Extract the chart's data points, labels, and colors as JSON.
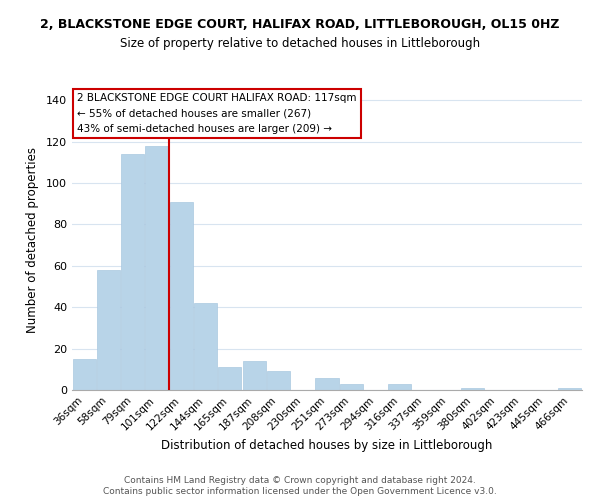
{
  "title": "2, BLACKSTONE EDGE COURT, HALIFAX ROAD, LITTLEBOROUGH, OL15 0HZ",
  "subtitle": "Size of property relative to detached houses in Littleborough",
  "xlabel": "Distribution of detached houses by size in Littleborough",
  "ylabel": "Number of detached properties",
  "bar_color": "#b8d4e8",
  "bar_edge_color": "#aac8e0",
  "vline_color": "#cc0000",
  "vline_x_index": 4,
  "categories": [
    "36sqm",
    "58sqm",
    "79sqm",
    "101sqm",
    "122sqm",
    "144sqm",
    "165sqm",
    "187sqm",
    "208sqm",
    "230sqm",
    "251sqm",
    "273sqm",
    "294sqm",
    "316sqm",
    "337sqm",
    "359sqm",
    "380sqm",
    "402sqm",
    "423sqm",
    "445sqm",
    "466sqm"
  ],
  "values": [
    15,
    58,
    114,
    118,
    91,
    42,
    11,
    14,
    9,
    0,
    6,
    3,
    0,
    3,
    0,
    0,
    1,
    0,
    0,
    0,
    1
  ],
  "ylim": [
    0,
    145
  ],
  "yticks": [
    0,
    20,
    40,
    60,
    80,
    100,
    120,
    140
  ],
  "annotation_text": "2 BLACKSTONE EDGE COURT HALIFAX ROAD: 117sqm\n← 55% of detached houses are smaller (267)\n43% of semi-detached houses are larger (209) →",
  "annotation_box_color": "#ffffff",
  "annotation_box_edge_color": "#cc0000",
  "footer_line1": "Contains HM Land Registry data © Crown copyright and database right 2024.",
  "footer_line2": "Contains public sector information licensed under the Open Government Licence v3.0.",
  "background_color": "#ffffff",
  "grid_color": "#d8e4f0"
}
